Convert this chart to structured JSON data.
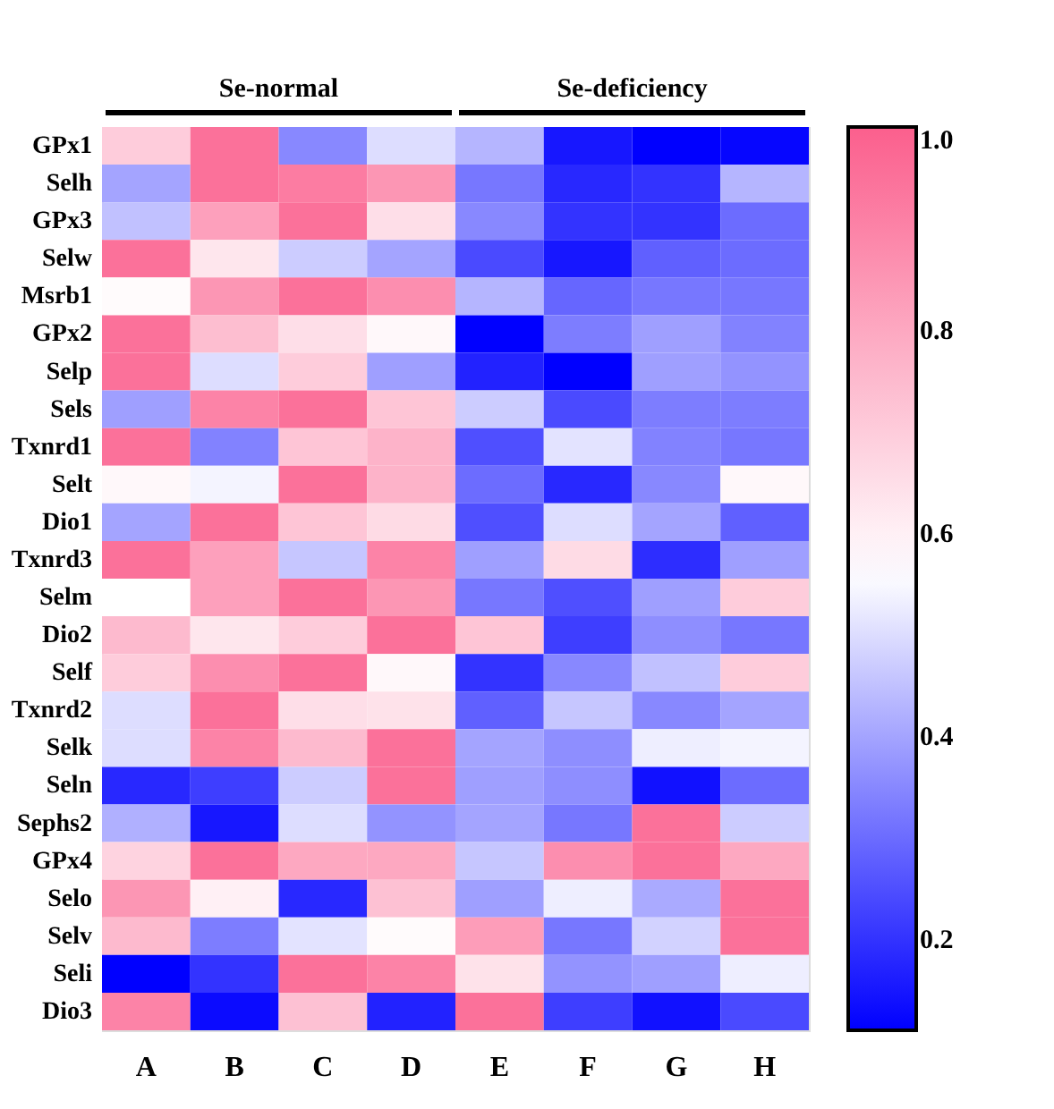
{
  "chart_data": {
    "type": "heatmap",
    "categories": [
      "A",
      "B",
      "C",
      "D",
      "E",
      "F",
      "G",
      "H"
    ],
    "y_categories": [
      "GPx1",
      "Selh",
      "GPx3",
      "Selw",
      "Msrb1",
      "GPx2",
      "Selp",
      "Sels",
      "Txnrd1",
      "Selt",
      "Dio1",
      "Txnrd3",
      "Selm",
      "Dio2",
      "Self",
      "Txnrd2",
      "Selk",
      "Seln",
      "Sephs2",
      "GPx4",
      "Selo",
      "Selv",
      "Seli",
      "Dio3"
    ],
    "cells": [
      [
        0.7,
        0.95,
        0.35,
        0.5,
        0.43,
        0.15,
        0.11,
        0.12
      ],
      [
        0.4,
        0.95,
        0.92,
        0.85,
        0.32,
        0.18,
        0.2,
        0.43
      ],
      [
        0.45,
        0.82,
        0.95,
        0.65,
        0.35,
        0.2,
        0.2,
        0.3
      ],
      [
        0.95,
        0.63,
        0.47,
        0.4,
        0.24,
        0.15,
        0.28,
        0.3
      ],
      [
        0.57,
        0.85,
        0.95,
        0.87,
        0.43,
        0.29,
        0.32,
        0.32
      ],
      [
        0.95,
        0.74,
        0.65,
        0.58,
        0.11,
        0.33,
        0.39,
        0.34
      ],
      [
        0.95,
        0.5,
        0.7,
        0.39,
        0.17,
        0.11,
        0.39,
        0.37
      ],
      [
        0.39,
        0.9,
        0.95,
        0.72,
        0.47,
        0.24,
        0.33,
        0.33
      ],
      [
        0.95,
        0.34,
        0.72,
        0.77,
        0.25,
        0.51,
        0.34,
        0.32
      ],
      [
        0.58,
        0.54,
        0.95,
        0.77,
        0.3,
        0.18,
        0.35,
        0.58
      ],
      [
        0.4,
        0.95,
        0.72,
        0.66,
        0.25,
        0.5,
        0.4,
        0.28
      ],
      [
        0.95,
        0.82,
        0.46,
        0.9,
        0.39,
        0.66,
        0.19,
        0.39
      ],
      [
        0.56,
        0.82,
        0.95,
        0.85,
        0.32,
        0.25,
        0.39,
        0.7
      ],
      [
        0.75,
        0.63,
        0.7,
        0.95,
        0.72,
        0.22,
        0.36,
        0.32
      ],
      [
        0.7,
        0.87,
        0.95,
        0.58,
        0.2,
        0.35,
        0.45,
        0.7
      ],
      [
        0.5,
        0.95,
        0.65,
        0.64,
        0.28,
        0.46,
        0.35,
        0.4
      ],
      [
        0.5,
        0.9,
        0.75,
        0.95,
        0.4,
        0.36,
        0.53,
        0.54
      ],
      [
        0.18,
        0.22,
        0.47,
        0.95,
        0.39,
        0.36,
        0.14,
        0.3
      ],
      [
        0.42,
        0.15,
        0.5,
        0.37,
        0.4,
        0.32,
        0.95,
        0.47
      ],
      [
        0.68,
        0.95,
        0.8,
        0.8,
        0.46,
        0.87,
        0.95,
        0.8
      ],
      [
        0.85,
        0.6,
        0.18,
        0.73,
        0.39,
        0.53,
        0.41,
        0.95
      ],
      [
        0.75,
        0.33,
        0.51,
        0.57,
        0.83,
        0.32,
        0.48,
        0.95
      ],
      [
        0.11,
        0.2,
        0.95,
        0.9,
        0.64,
        0.37,
        0.39,
        0.53
      ],
      [
        0.9,
        0.13,
        0.73,
        0.17,
        0.95,
        0.22,
        0.14,
        0.24
      ]
    ],
    "clim": [
      0.11,
      1.0
    ],
    "cticks": [
      {
        "value": 0.2,
        "label": "0.2"
      },
      {
        "value": 0.4,
        "label": "0.4"
      },
      {
        "value": 0.6,
        "label": "0.6"
      },
      {
        "value": 0.8,
        "label": "0.8"
      },
      {
        "value": 1.0,
        "label": "1.0"
      }
    ],
    "annotations": [
      "Se-normal",
      "Se-deficiency"
    ]
  }
}
